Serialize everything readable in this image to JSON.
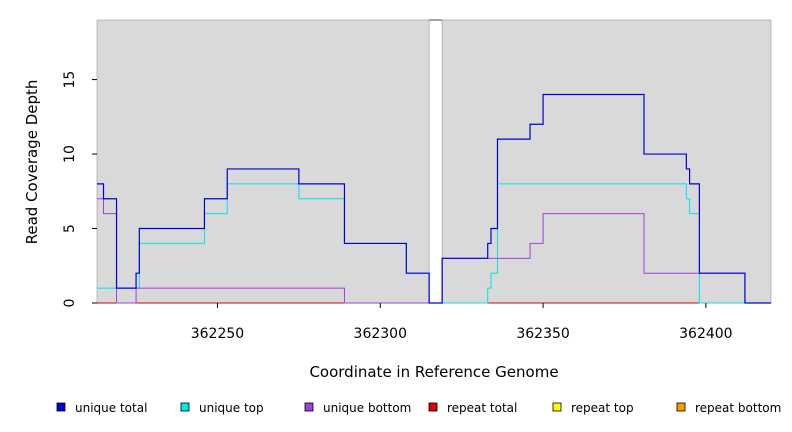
{
  "chart_data": {
    "type": "line",
    "title": "",
    "xlabel": "Coordinate in Reference Genome",
    "ylabel": "Read Coverage Depth",
    "xlim": [
      362213,
      362420
    ],
    "ylim": [
      0,
      19
    ],
    "xticks": [
      362250,
      362300,
      362350,
      362400
    ],
    "yticks": [
      0,
      5,
      10,
      15
    ],
    "grid": false,
    "background": "#d9d9d9",
    "panels": [
      [
        362213,
        362315
      ],
      [
        362319,
        362420
      ]
    ],
    "gap_marker": [
      362315,
      362319
    ],
    "legend_position": "bottom",
    "series": [
      {
        "name": "unique total",
        "color": "#0000dd",
        "steps": [
          [
            362213,
            8
          ],
          [
            362215,
            7
          ],
          [
            362219,
            1
          ],
          [
            362225,
            2
          ],
          [
            362226,
            5
          ],
          [
            362246,
            7
          ],
          [
            362253,
            9
          ],
          [
            362275,
            8
          ],
          [
            362289,
            4
          ],
          [
            362308,
            2
          ],
          [
            362315,
            0
          ],
          [
            362319,
            3
          ],
          [
            362333,
            4
          ],
          [
            362334,
            5
          ],
          [
            362336,
            11
          ],
          [
            362346,
            12
          ],
          [
            362350,
            14
          ],
          [
            362381,
            10
          ],
          [
            362394,
            9
          ],
          [
            362395,
            8
          ],
          [
            362398,
            2
          ],
          [
            362412,
            0
          ],
          [
            362420,
            0
          ]
        ]
      },
      {
        "name": "unique top",
        "color": "#00e5e5",
        "steps": [
          [
            362213,
            1
          ],
          [
            362219,
            1
          ],
          [
            362226,
            4
          ],
          [
            362246,
            6
          ],
          [
            362253,
            8
          ],
          [
            362275,
            7
          ],
          [
            362289,
            4
          ],
          [
            362308,
            2
          ],
          [
            362315,
            0
          ],
          [
            362319,
            0
          ],
          [
            362333,
            1
          ],
          [
            362334,
            2
          ],
          [
            362336,
            8
          ],
          [
            362394,
            7
          ],
          [
            362395,
            6
          ],
          [
            362398,
            0
          ],
          [
            362420,
            0
          ]
        ]
      },
      {
        "name": "unique bottom",
        "color": "#a040e0",
        "steps": [
          [
            362213,
            7
          ],
          [
            362215,
            6
          ],
          [
            362219,
            0
          ],
          [
            362225,
            1
          ],
          [
            362289,
            0
          ],
          [
            362315,
            0
          ],
          [
            362319,
            3
          ],
          [
            362346,
            4
          ],
          [
            362350,
            6
          ],
          [
            362381,
            2
          ],
          [
            362398,
            2
          ],
          [
            362412,
            0
          ],
          [
            362420,
            0
          ]
        ]
      },
      {
        "name": "repeat total",
        "color": "#e00000",
        "steps": [
          [
            362213,
            0
          ],
          [
            362420,
            0
          ]
        ]
      },
      {
        "name": "repeat top",
        "color": "#ffff00",
        "steps": [
          [
            362213,
            0
          ],
          [
            362420,
            0
          ]
        ]
      },
      {
        "name": "repeat bottom",
        "color": "#ff9900",
        "steps": [
          [
            362213,
            0
          ],
          [
            362420,
            0
          ]
        ]
      }
    ]
  }
}
